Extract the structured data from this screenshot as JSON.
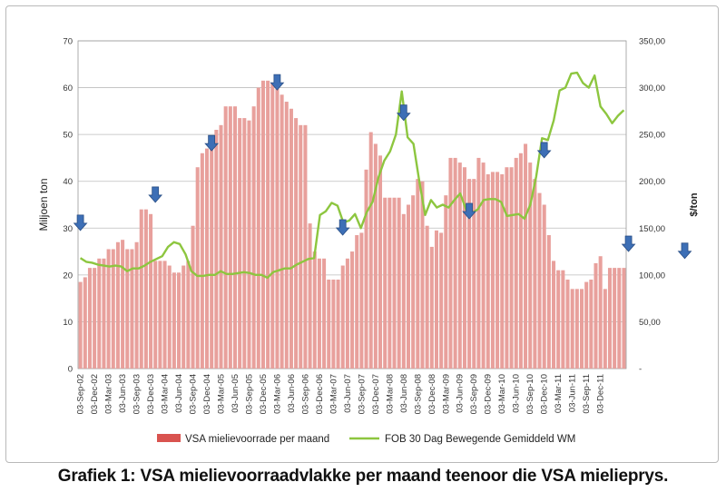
{
  "caption": "Grafiek 1: VSA mielievoorraadvlakke per maand teenoor die VSA mielieprys.",
  "chart_data": {
    "type": "bar",
    "title": "",
    "ylabel": "Miljoen ton",
    "y2label": "$/ton",
    "ylim": [
      0,
      70
    ],
    "y2lim": [
      0,
      350
    ],
    "yticks": [
      "0",
      "10",
      "20",
      "30",
      "40",
      "50",
      "60",
      "70"
    ],
    "y2ticks": [
      "-",
      "50,00",
      "100,00",
      "150,00",
      "200,00",
      "250,00",
      "300,00",
      "350,00"
    ],
    "grid": true,
    "legend_position": "bottom",
    "xtick_labels": [
      "03-Sep-02",
      "03-Dec-02",
      "03-Mar-03",
      "03-Jun-03",
      "03-Sep-03",
      "03-Dec-03",
      "03-Mar-04",
      "03-Jun-04",
      "03-Sep-04",
      "03-Dec-04",
      "03-Mar-05",
      "03-Jun-05",
      "03-Sep-05",
      "03-Dec-05",
      "03-Mar-06",
      "03-Jun-06",
      "03-Sep-06",
      "03-Dec-06",
      "03-Mar-07",
      "03-Jun-07",
      "03-Sep-07",
      "03-Dec-07",
      "03-Mar-08",
      "03-Jun-08",
      "03-Sep-08",
      "03-Dec-08",
      "03-Mar-09",
      "03-Jun-09",
      "03-Sep-09",
      "03-Dec-09",
      "03-Mar-10",
      "03-Jun-10",
      "03-Sep-10",
      "03-Dec-10",
      "03-Mar-11",
      "03-Jun-11",
      "03-Sep-11",
      "03-Dec-11"
    ],
    "series": [
      {
        "name": "VSA mielievoorrade per maand",
        "type": "bar",
        "axis": "left",
        "color": "#e8a09c",
        "legend_color": "#d9534f",
        "values": [
          18.5,
          19.5,
          21.5,
          21.5,
          23.5,
          23.5,
          25.5,
          25.5,
          27,
          27.5,
          25.5,
          25.5,
          27,
          34,
          34,
          33,
          23,
          23,
          23,
          22,
          20.5,
          20.5,
          22,
          23,
          30.5,
          43,
          46,
          47,
          49.5,
          51,
          52,
          56,
          56,
          56,
          53.5,
          53.5,
          53,
          56,
          60,
          61.5,
          61.5,
          61,
          60,
          58.5,
          57,
          55.5,
          53.5,
          52,
          52,
          31,
          25,
          23.5,
          23.5,
          19,
          19,
          19,
          22,
          23.5,
          25,
          28.5,
          29,
          42.5,
          50.5,
          48,
          45.5,
          36.5,
          36.5,
          36.5,
          36.5,
          33,
          35,
          37,
          40.5,
          40,
          30.5,
          26,
          29.5,
          29,
          37,
          45,
          45,
          44,
          43,
          40.5,
          40.5,
          45,
          44,
          41.5,
          42,
          42,
          41.5,
          43,
          43,
          45,
          46,
          48,
          44,
          40.5,
          37.5,
          35,
          28.5,
          23,
          21,
          21,
          19,
          17,
          17,
          17,
          18.5,
          19,
          22.5,
          24,
          17,
          21.5,
          21.5,
          21.5,
          21.5
        ]
      },
      {
        "name": "FOB 30 Dag Bewegende Gemiddeld WM",
        "type": "line",
        "axis": "right",
        "color": "#8dc63f",
        "values": [
          118,
          114,
          113,
          111,
          110,
          109,
          110,
          109,
          104,
          107,
          107,
          110,
          114,
          117,
          120,
          130,
          135,
          133,
          122,
          104,
          99,
          99,
          100,
          100,
          104,
          101,
          101,
          102,
          103,
          102,
          100,
          100,
          97,
          103,
          105,
          107,
          107,
          111,
          114,
          117,
          118,
          164,
          168,
          177,
          174,
          156,
          158,
          165,
          150,
          167,
          178,
          204,
          222,
          232,
          250,
          296,
          247,
          240,
          200,
          164,
          180,
          172,
          175,
          172,
          180,
          187,
          170,
          166,
          170,
          180,
          181,
          181,
          178,
          163,
          164,
          165,
          160,
          175,
          205,
          246,
          244,
          265,
          297,
          300,
          315,
          316,
          305,
          300,
          313,
          280,
          272,
          262,
          270,
          276
        ]
      }
    ],
    "arrows": [
      {
        "bar_index": 0,
        "y": 29.5
      },
      {
        "bar_index": 16,
        "y": 35.5
      },
      {
        "bar_index": 28,
        "y": 46.5
      },
      {
        "bar_index": 42,
        "y": 59.5
      },
      {
        "bar_index": 56,
        "y": 28.5
      },
      {
        "bar_index": 69,
        "y": 53
      },
      {
        "bar_index": 83,
        "y": 32
      },
      {
        "bar_index": 99,
        "y": 45
      },
      {
        "bar_index": 117,
        "y": 25
      },
      {
        "bar_index": 129,
        "y": 23.5
      }
    ]
  }
}
